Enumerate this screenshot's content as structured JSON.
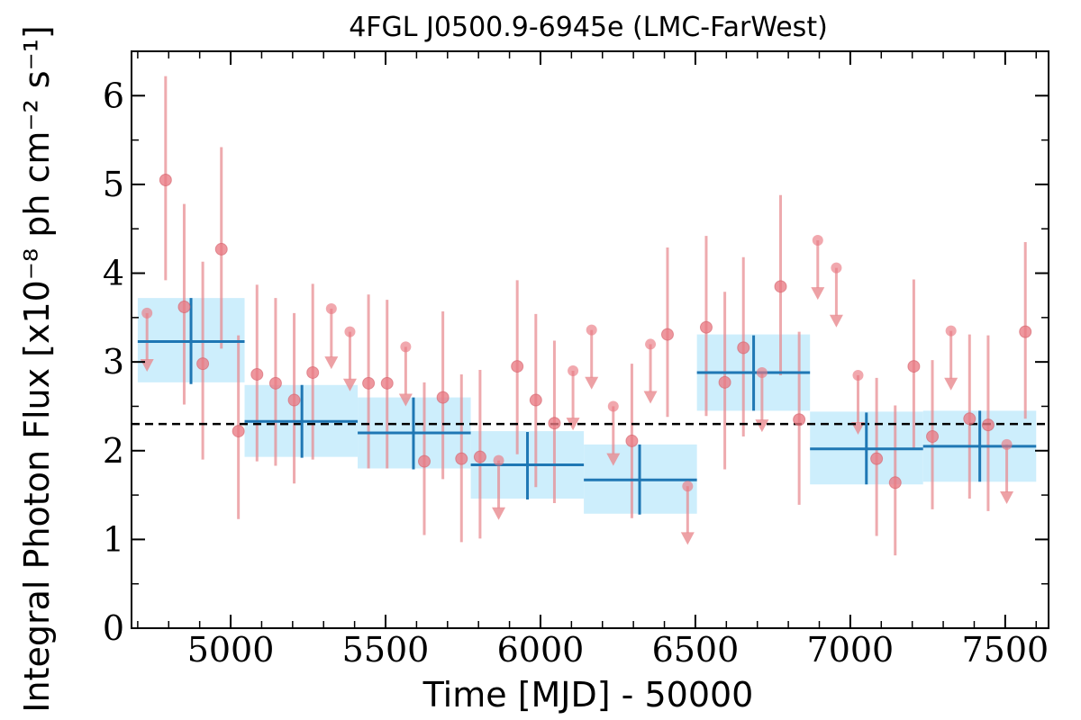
{
  "chart_data": {
    "type": "scatter",
    "title": "4FGL J0500.9-6945e (LMC-FarWest)",
    "xlabel": "Time [MJD] - 50000",
    "ylabel": "Integral Photon Flux [x10⁻⁸ ph cm⁻² s⁻¹]",
    "xlim": [
      4680,
      7640
    ],
    "ylim": [
      0,
      6.5
    ],
    "x_ticks": [
      5000,
      5500,
      6000,
      6500,
      7000,
      7500
    ],
    "y_ticks": [
      0,
      1,
      2,
      3,
      4,
      5,
      6
    ],
    "grid": false,
    "mean_flux": 2.3,
    "colors": {
      "points": "#e8898f",
      "bins_fill": "#cdeefc",
      "bins_line": "#1f77b4",
      "mean_line": "#000000"
    },
    "series": [
      {
        "kind": "light_curve_points",
        "points": [
          {
            "x": 4790,
            "y": 5.05,
            "lo": 3.92,
            "hi": 6.22
          },
          {
            "x": 4850,
            "y": 3.62,
            "lo": 2.52,
            "hi": 4.78
          },
          {
            "x": 4910,
            "y": 2.98,
            "lo": 1.9,
            "hi": 4.13
          },
          {
            "x": 4970,
            "y": 4.27,
            "lo": 3.15,
            "hi": 5.42
          },
          {
            "x": 5025,
            "y": 2.22,
            "lo": 1.23,
            "hi": 3.3
          },
          {
            "x": 5085,
            "y": 2.86,
            "lo": 1.88,
            "hi": 3.87
          },
          {
            "x": 5145,
            "y": 2.76,
            "lo": 1.83,
            "hi": 3.72
          },
          {
            "x": 5205,
            "y": 2.57,
            "lo": 1.63,
            "hi": 3.55
          },
          {
            "x": 5265,
            "y": 2.88,
            "lo": 1.9,
            "hi": 3.88
          },
          {
            "x": 5445,
            "y": 2.76,
            "lo": 1.8,
            "hi": 3.76
          },
          {
            "x": 5505,
            "y": 2.76,
            "lo": 1.8,
            "hi": 3.7
          },
          {
            "x": 5625,
            "y": 1.88,
            "lo": 1.05,
            "hi": 2.77
          },
          {
            "x": 5685,
            "y": 2.6,
            "lo": 1.68,
            "hi": 3.57
          },
          {
            "x": 5745,
            "y": 1.91,
            "lo": 0.97,
            "hi": 2.86
          },
          {
            "x": 5805,
            "y": 1.93,
            "lo": 1.01,
            "hi": 2.91
          },
          {
            "x": 5925,
            "y": 2.95,
            "lo": 1.96,
            "hi": 3.92
          },
          {
            "x": 5985,
            "y": 2.57,
            "lo": 1.59,
            "hi": 3.54
          },
          {
            "x": 6045,
            "y": 2.31,
            "lo": 1.41,
            "hi": 3.24
          },
          {
            "x": 6295,
            "y": 2.11,
            "lo": 1.24,
            "hi": 2.98
          },
          {
            "x": 6410,
            "y": 3.31,
            "lo": 2.38,
            "hi": 4.29
          },
          {
            "x": 6535,
            "y": 3.39,
            "lo": 2.39,
            "hi": 4.42
          },
          {
            "x": 6595,
            "y": 2.77,
            "lo": 1.79,
            "hi": 3.79
          },
          {
            "x": 6655,
            "y": 3.16,
            "lo": 2.16,
            "hi": 4.18
          },
          {
            "x": 6775,
            "y": 3.85,
            "lo": 2.85,
            "hi": 4.88
          },
          {
            "x": 6835,
            "y": 2.35,
            "lo": 1.39,
            "hi": 3.34
          },
          {
            "x": 7085,
            "y": 1.91,
            "lo": 1.04,
            "hi": 2.82
          },
          {
            "x": 7145,
            "y": 1.64,
            "lo": 0.82,
            "hi": 2.51
          },
          {
            "x": 7205,
            "y": 2.95,
            "lo": 2.03,
            "hi": 3.93
          },
          {
            "x": 7265,
            "y": 2.16,
            "lo": 1.34,
            "hi": 3.02
          },
          {
            "x": 7385,
            "y": 2.36,
            "lo": 1.46,
            "hi": 3.31
          },
          {
            "x": 7445,
            "y": 2.29,
            "lo": 1.32,
            "hi": 3.3
          },
          {
            "x": 7565,
            "y": 3.34,
            "lo": 2.36,
            "hi": 4.35
          }
        ]
      },
      {
        "kind": "upper_limits",
        "points": [
          {
            "x": 4730,
            "y": 3.55,
            "arrow": 2.92
          },
          {
            "x": 5325,
            "y": 3.6,
            "arrow": 2.95
          },
          {
            "x": 5385,
            "y": 3.34,
            "arrow": 2.7
          },
          {
            "x": 5565,
            "y": 3.17,
            "arrow": 2.53
          },
          {
            "x": 5865,
            "y": 1.89,
            "arrow": 1.25
          },
          {
            "x": 6105,
            "y": 2.9,
            "arrow": 2.26
          },
          {
            "x": 6165,
            "y": 3.36,
            "arrow": 2.72
          },
          {
            "x": 6235,
            "y": 2.5,
            "arrow": 1.86
          },
          {
            "x": 6355,
            "y": 3.2,
            "arrow": 2.56
          },
          {
            "x": 6475,
            "y": 1.6,
            "arrow": 0.97
          },
          {
            "x": 6715,
            "y": 2.88,
            "arrow": 2.24
          },
          {
            "x": 6895,
            "y": 4.37,
            "arrow": 3.73
          },
          {
            "x": 6955,
            "y": 4.06,
            "arrow": 3.42
          },
          {
            "x": 7025,
            "y": 2.85,
            "arrow": 2.21
          },
          {
            "x": 7325,
            "y": 3.35,
            "arrow": 2.71
          },
          {
            "x": 7505,
            "y": 2.07,
            "arrow": 1.43
          }
        ]
      },
      {
        "kind": "binned_flux",
        "bins": [
          {
            "x0": 4700,
            "x1": 5045,
            "xc": 4872,
            "y": 3.23,
            "band_lo": 2.77,
            "band_hi": 3.72,
            "err_lo": 2.75,
            "err_hi": 3.72
          },
          {
            "x0": 5045,
            "x1": 5410,
            "xc": 5230,
            "y": 2.33,
            "band_lo": 1.93,
            "band_hi": 2.74,
            "err_lo": 1.92,
            "err_hi": 2.74
          },
          {
            "x0": 5410,
            "x1": 5775,
            "xc": 5590,
            "y": 2.2,
            "band_lo": 1.8,
            "band_hi": 2.6,
            "err_lo": 1.79,
            "err_hi": 2.6
          },
          {
            "x0": 5775,
            "x1": 6140,
            "xc": 5958,
            "y": 1.84,
            "band_lo": 1.46,
            "band_hi": 2.22,
            "err_lo": 1.45,
            "err_hi": 2.21
          },
          {
            "x0": 6140,
            "x1": 6505,
            "xc": 6320,
            "y": 1.67,
            "band_lo": 1.29,
            "band_hi": 2.07,
            "err_lo": 1.28,
            "err_hi": 2.07
          },
          {
            "x0": 6505,
            "x1": 6870,
            "xc": 6688,
            "y": 2.88,
            "band_lo": 2.45,
            "band_hi": 3.31,
            "err_lo": 2.45,
            "err_hi": 3.3
          },
          {
            "x0": 6870,
            "x1": 7235,
            "xc": 7052,
            "y": 2.02,
            "band_lo": 1.62,
            "band_hi": 2.44,
            "err_lo": 1.62,
            "err_hi": 2.43
          },
          {
            "x0": 7235,
            "x1": 7600,
            "xc": 7418,
            "y": 2.05,
            "band_lo": 1.65,
            "band_hi": 2.45,
            "err_lo": 1.65,
            "err_hi": 2.45
          }
        ]
      }
    ]
  }
}
